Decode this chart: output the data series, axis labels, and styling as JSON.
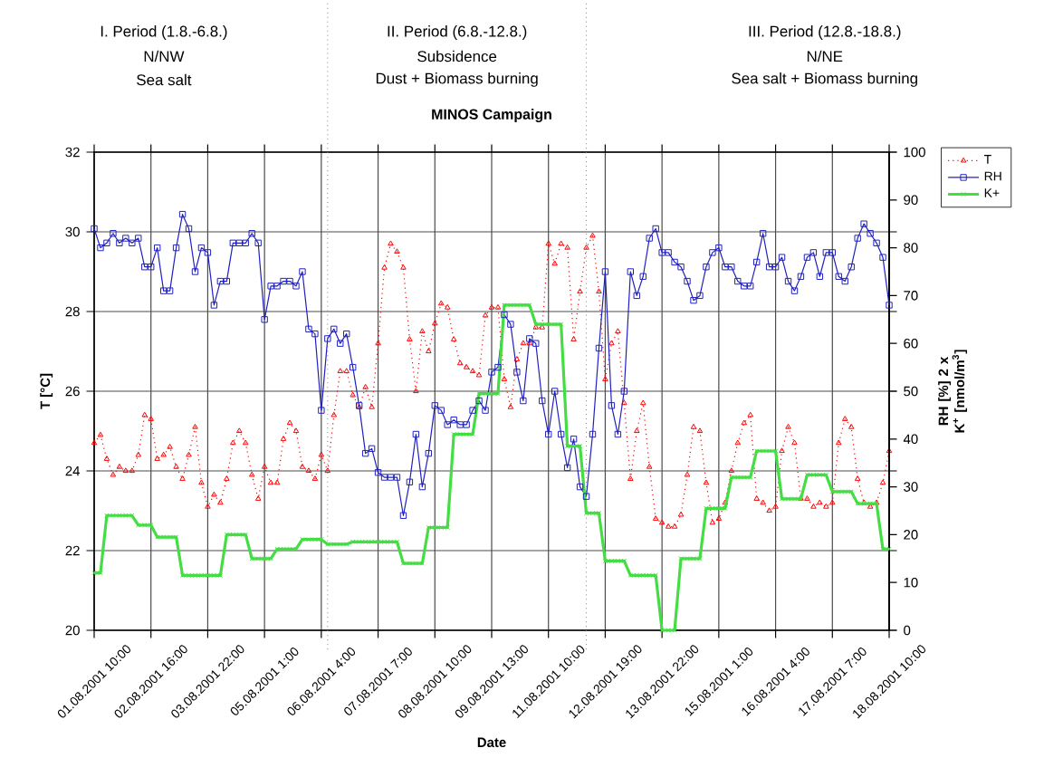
{
  "chart_data": {
    "type": "line",
    "title": "MINOS Campaign",
    "xlabel": "Date",
    "ylabel": "T [°C]",
    "y2label": "RH [%] 2 x K$^{+}$ [nmol/m$^{3}$]",
    "categories": [
      "01.08.2001 10:00",
      null,
      null,
      null,
      null,
      null,
      null,
      null,
      null,
      "02.08.2001 16:00",
      null,
      null,
      null,
      null,
      null,
      null,
      null,
      null,
      "03.08.2001 22:00",
      null,
      null,
      null,
      null,
      null,
      null,
      null,
      null,
      "05.08.2001 1:00",
      null,
      null,
      null,
      null,
      null,
      null,
      null,
      null,
      "06.08.2001 4:00",
      null,
      null,
      null,
      null,
      null,
      null,
      null,
      null,
      "07.08.2001 7:00",
      null,
      null,
      null,
      null,
      null,
      null,
      null,
      null,
      "08.08.2001 10:00",
      null,
      null,
      null,
      null,
      null,
      null,
      null,
      null,
      "09.08.2001 13:00",
      null,
      null,
      null,
      null,
      null,
      null,
      null,
      null,
      "11.08.2001 10:00",
      null,
      null,
      null,
      null,
      null,
      null,
      null,
      null,
      "12.08.2001 19:00",
      null,
      null,
      null,
      null,
      null,
      null,
      null,
      null,
      "13.08.2001 22:00",
      null,
      null,
      null,
      null,
      null,
      null,
      null,
      null,
      "15.08.2001 1:00",
      null,
      null,
      null,
      null,
      null,
      null,
      null,
      null,
      "16.08.2001 4:00",
      null,
      null,
      null,
      null,
      null,
      null,
      null,
      null,
      "17.08.2001 7:00",
      null,
      null,
      null,
      null,
      null,
      null,
      null,
      null,
      "18.08.2001 10:00"
    ],
    "series": [
      {
        "name": "T",
        "color": "#ff0000",
        "axis": "y",
        "marker": "triangle",
        "line_style": "dotted",
        "values": [
          24.7,
          24.9,
          24.3,
          23.9,
          24.1,
          24.0,
          24.0,
          24.4,
          25.4,
          25.3,
          24.3,
          24.4,
          24.6,
          24.1,
          23.8,
          24.4,
          25.1,
          23.7,
          23.1,
          23.4,
          23.2,
          23.8,
          24.7,
          25.0,
          24.7,
          23.9,
          23.3,
          24.1,
          23.7,
          23.7,
          24.8,
          25.2,
          25.0,
          24.1,
          24.0,
          23.8,
          24.4,
          24.0,
          25.4,
          26.5,
          26.5,
          25.9,
          25.6,
          26.1,
          25.6,
          27.2,
          29.1,
          29.7,
          29.5,
          29.1,
          27.3,
          26.0,
          27.5,
          27.0,
          27.7,
          28.2,
          28.1,
          27.3,
          26.7,
          26.6,
          26.5,
          26.4,
          27.9,
          28.1,
          28.1,
          26.3,
          25.6,
          26.8,
          27.2,
          27.2,
          27.6,
          27.6,
          29.7,
          29.2,
          29.7,
          29.6,
          27.3,
          28.5,
          29.6,
          29.9,
          28.5,
          26.3,
          27.2,
          27.5,
          25.7,
          23.8,
          25.0,
          25.7,
          24.1,
          22.8,
          22.7,
          22.6,
          22.6,
          22.9,
          23.9,
          25.1,
          25.0,
          23.7,
          22.7,
          22.8,
          23.2,
          24.0,
          24.7,
          25.2,
          25.4,
          23.3,
          23.2,
          23.0,
          23.1,
          24.5,
          25.1,
          24.7,
          23.3,
          23.3,
          23.1,
          23.2,
          23.1,
          23.2,
          24.7,
          25.3,
          25.1,
          23.8,
          23.2,
          23.1,
          23.2,
          23.7,
          24.5
        ]
      },
      {
        "name": "RH",
        "color": "#2020c0",
        "axis": "y2",
        "marker": "square",
        "line_style": "solid",
        "values": [
          84,
          80,
          81,
          83,
          81,
          82,
          81,
          82,
          76,
          76,
          80,
          71,
          71,
          80,
          87,
          84,
          75,
          80,
          79,
          68,
          73,
          73,
          81,
          81,
          81,
          83,
          81,
          65,
          72,
          72,
          73,
          73,
          72,
          75,
          63,
          62,
          46,
          61,
          63,
          60,
          62,
          55,
          47,
          37,
          38,
          33,
          32,
          32,
          32,
          24,
          31,
          41,
          30,
          37,
          47,
          46,
          43,
          44,
          43,
          43,
          46,
          48,
          46,
          54,
          55,
          66,
          64,
          54,
          48,
          61,
          60,
          48,
          41,
          50,
          41,
          34,
          40,
          30,
          28,
          41,
          59,
          75,
          47,
          41,
          50,
          75,
          70,
          74,
          82,
          84,
          79,
          79,
          77,
          76,
          73,
          69,
          70,
          76,
          79,
          80,
          76,
          76,
          73,
          72,
          72,
          77,
          83,
          76,
          76,
          78,
          73,
          71,
          74,
          78,
          79,
          74,
          79,
          79,
          74,
          73,
          76,
          82,
          85,
          83,
          81,
          78,
          68
        ]
      },
      {
        "name": "K+",
        "color": "#44dd44",
        "axis": "y2",
        "marker": "cross",
        "line_style": "solid",
        "values": [
          12,
          12,
          24,
          24,
          24,
          24,
          24,
          22,
          22,
          22,
          19.5,
          19.5,
          19.5,
          19.5,
          11.5,
          11.5,
          11.5,
          11.5,
          11.5,
          11.5,
          11.5,
          20,
          20,
          20,
          20,
          15,
          15,
          15,
          15,
          17,
          17,
          17,
          17,
          19,
          19,
          19,
          19,
          18,
          18,
          18,
          18,
          18.5,
          18.5,
          18.5,
          18.5,
          18.5,
          18.5,
          18.5,
          18.5,
          14,
          14,
          14,
          14,
          21.5,
          21.5,
          21.5,
          21.5,
          41,
          41,
          41,
          41,
          49.5,
          49.5,
          49.5,
          49.5,
          68,
          68,
          68,
          68,
          68,
          64,
          64,
          64,
          64,
          64,
          38.5,
          38.5,
          38.5,
          24.5,
          24.5,
          24.5,
          14.5,
          14.5,
          14.5,
          14.5,
          11.5,
          11.5,
          11.5,
          11.5,
          11.5,
          0,
          0,
          0,
          15,
          15,
          15,
          15,
          25.5,
          25.5,
          25.5,
          25.5,
          32,
          32,
          32,
          32,
          37.5,
          37.5,
          37.5,
          37.5,
          27.5,
          27.5,
          27.5,
          27.5,
          32.5,
          32.5,
          32.5,
          32.5,
          29,
          29,
          29,
          29,
          26.5,
          26.5,
          26.5,
          26.5,
          17,
          17
        ]
      }
    ],
    "ylim": [
      20,
      32
    ],
    "yticks": [
      20,
      22,
      24,
      26,
      28,
      30,
      32
    ],
    "y2lim": [
      0,
      100
    ],
    "y2ticks": [
      0,
      10,
      20,
      30,
      40,
      50,
      60,
      70,
      80,
      90,
      100
    ],
    "grid": true,
    "legend": "right",
    "annotations": [
      "I. Period (1.8.-6.8.)",
      "N/NW",
      "Sea salt",
      "II. Period (6.8.-12.8.)",
      "Subsidence",
      "Dust + Biomass burning",
      "III. Period (12.8.-18.8.)",
      "N/NE",
      "Sea salt + Biomass burning"
    ]
  }
}
